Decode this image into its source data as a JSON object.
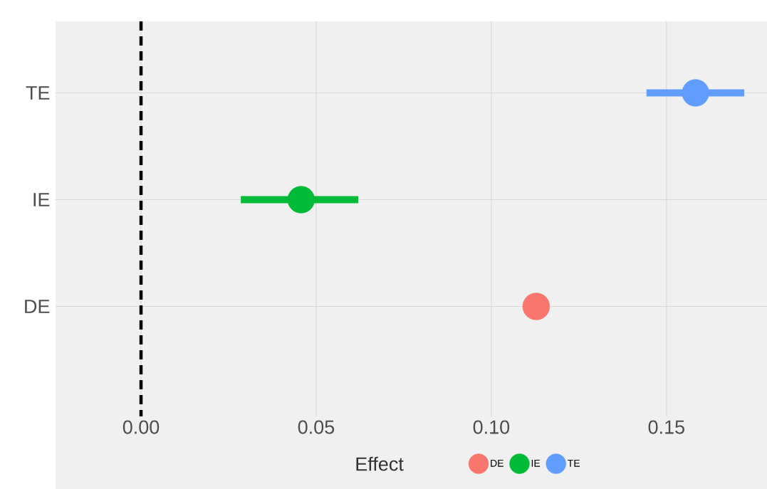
{
  "chart_data": {
    "type": "scatter",
    "orientation": "horizontal",
    "xlabel": "Effect",
    "categories": [
      "TE",
      "IE",
      "DE"
    ],
    "series": [
      {
        "name": "DE",
        "color": "#f8766d",
        "values": [
          null,
          null,
          0.1128
        ]
      },
      {
        "name": "IE",
        "color": "#00ba38",
        "values": [
          null,
          0.0457,
          null
        ],
        "errors": [
          null,
          [
            0.0285,
            0.062
          ],
          null
        ]
      },
      {
        "name": "TE",
        "color": "#619cff",
        "values": [
          0.1583,
          null,
          null
        ],
        "errors": [
          [
            0.1443,
            0.1722
          ],
          null,
          null
        ]
      }
    ],
    "xlim": [
      -0.0244,
      0.1787
    ],
    "xticks": [
      {
        "value": 0,
        "label": "0.00"
      },
      {
        "value": 0.05,
        "label": "0.05"
      },
      {
        "value": 0.1,
        "label": "0.10"
      },
      {
        "value": 0.15,
        "label": "0.15"
      }
    ],
    "ref_lines": [
      {
        "axis": "x",
        "value": 0,
        "color": "#000000",
        "line_style": "dashed"
      }
    ],
    "grid": true,
    "legend": "bottom",
    "marker": "circle"
  }
}
